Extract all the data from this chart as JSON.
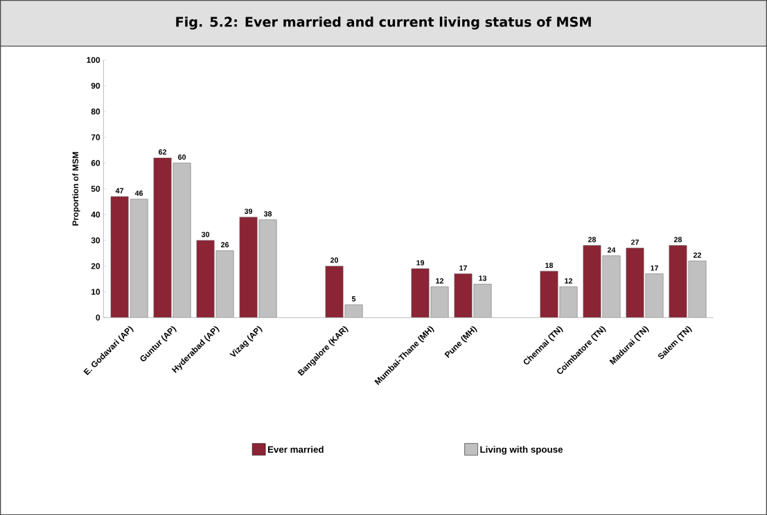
{
  "chart_data": {
    "type": "bar",
    "title": "Fig. 5.2: Ever married and current living status of MSM",
    "ylabel": "Proportion of MSM",
    "categories": [
      "E. Godavari (AP)",
      "Guntur (AP)",
      "Hyderabad (AP)",
      "Vizag (AP)",
      null,
      "Bangalore (KAR)",
      null,
      "Mumbai-Thane (MH)",
      "Pune (MH)",
      null,
      "Chennai (TN)",
      "Coimbatore (TN)",
      "Madurai (TN)",
      "Salem (TN)"
    ],
    "series": [
      {
        "name": "Ever married",
        "color": "#8b2434",
        "values": [
          47,
          62,
          30,
          39,
          null,
          20,
          null,
          19,
          17,
          null,
          18,
          28,
          27,
          28
        ]
      },
      {
        "name": "Living with spouse",
        "color": "#c0c0c0",
        "values": [
          46,
          60,
          26,
          38,
          null,
          5,
          null,
          12,
          13,
          null,
          12,
          24,
          17,
          22
        ]
      }
    ],
    "ylim": [
      0,
      100
    ],
    "yticks": [
      0,
      10,
      20,
      30,
      40,
      50,
      60,
      70,
      80,
      90,
      100
    ],
    "data_labels": true,
    "legend": "bottom",
    "grid": false
  }
}
